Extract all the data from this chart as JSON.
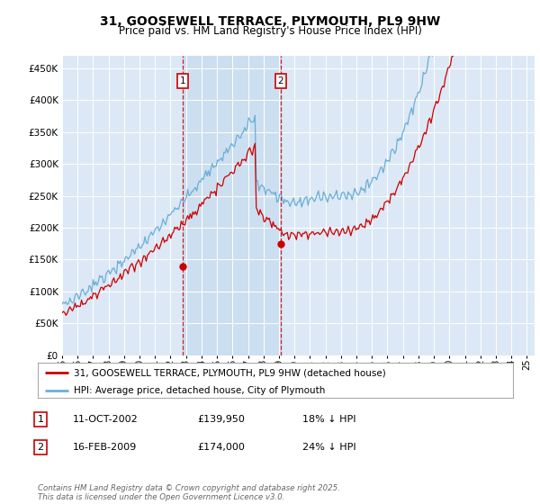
{
  "title": "31, GOOSEWELL TERRACE, PLYMOUTH, PL9 9HW",
  "subtitle": "Price paid vs. HM Land Registry's House Price Index (HPI)",
  "legend_line1": "31, GOOSEWELL TERRACE, PLYMOUTH, PL9 9HW (detached house)",
  "legend_line2": "HPI: Average price, detached house, City of Plymouth",
  "footnote": "Contains HM Land Registry data © Crown copyright and database right 2025.\nThis data is licensed under the Open Government Licence v3.0.",
  "transaction1_label": "1",
  "transaction1_date": "11-OCT-2002",
  "transaction1_price": "£139,950",
  "transaction1_hpi": "18% ↓ HPI",
  "transaction2_label": "2",
  "transaction2_date": "16-FEB-2009",
  "transaction2_price": "£174,000",
  "transaction2_hpi": "24% ↓ HPI",
  "hpi_color": "#6aaed6",
  "price_color": "#cc0000",
  "marker_color": "#cc0000",
  "background_color": "#ffffff",
  "plot_bg_color": "#dce8f5",
  "shade_color": "#ccdff0",
  "ylim": [
    0,
    470000
  ],
  "yticks": [
    0,
    50000,
    100000,
    150000,
    200000,
    250000,
    300000,
    350000,
    400000,
    450000
  ],
  "t1": 2002.79,
  "t2": 2009.12,
  "p1": 139950,
  "p2": 174000
}
